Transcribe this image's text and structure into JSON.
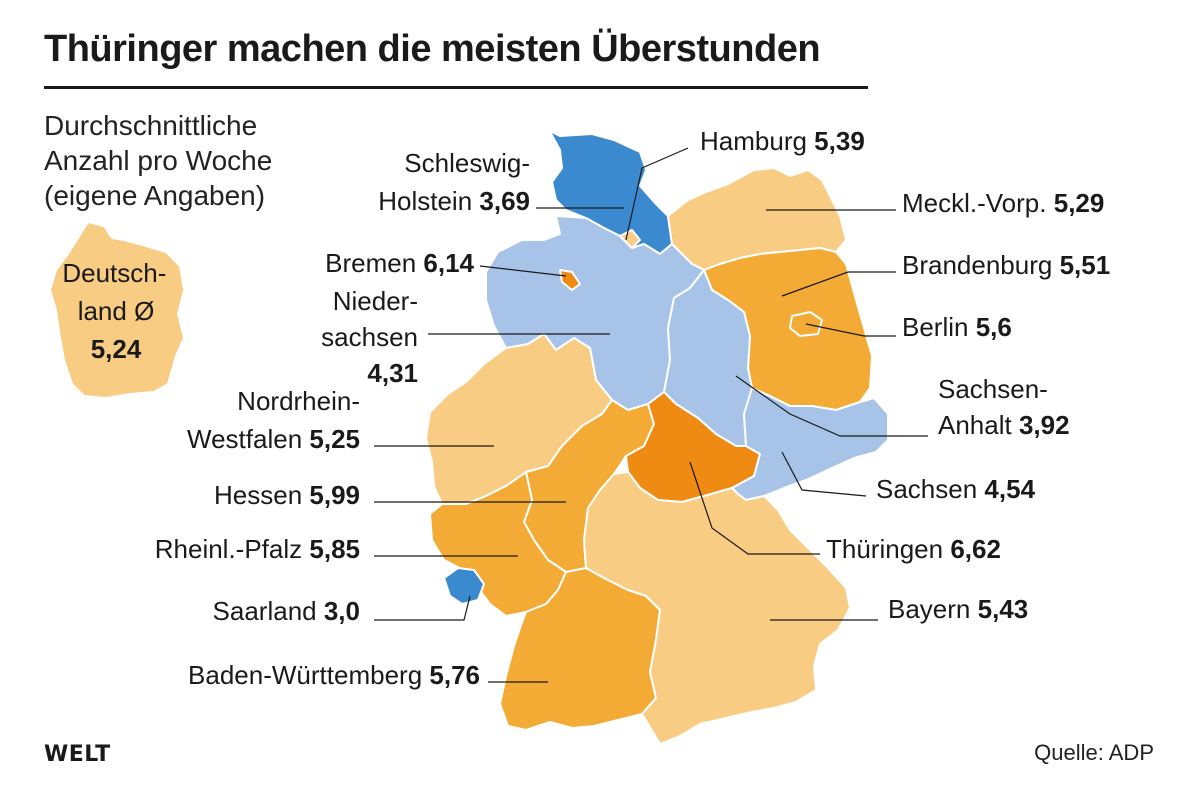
{
  "title": "Thüringer machen die meisten Überstunden",
  "subtitle_lines": [
    "Durchschnittliche",
    "Anzahl pro Woche",
    "(eigene Angaben)"
  ],
  "national": {
    "label_lines": [
      "Deutsch-",
      "land Ø"
    ],
    "value": "5,24",
    "color": "#f9cc84"
  },
  "legend_colors": {
    "pale_blue": "#a7c3e8",
    "mid_blue": "#3b8ad0",
    "pale_orange": "#f9cc84",
    "mid_orange": "#f3ab35",
    "dark_orange": "#ef8a12"
  },
  "states": [
    {
      "id": "schleswig-holstein",
      "label_lines": [
        "Schleswig-",
        "Holstein"
      ],
      "value": "3,69",
      "color": "#3b8ad0"
    },
    {
      "id": "hamburg",
      "label_lines": [
        "Hamburg"
      ],
      "value": "5,39",
      "color": "#f9cc84"
    },
    {
      "id": "mecklenburg-vorpommern",
      "label_lines": [
        "Meckl.-Vorp."
      ],
      "value": "5,29",
      "color": "#f9cc84"
    },
    {
      "id": "bremen",
      "label_lines": [
        "Bremen"
      ],
      "value": "6,14",
      "color": "#ef8a12"
    },
    {
      "id": "brandenburg",
      "label_lines": [
        "Brandenburg"
      ],
      "value": "5,51",
      "color": "#f3ab35"
    },
    {
      "id": "niedersachsen",
      "label_lines": [
        "Nieder-",
        "sachsen"
      ],
      "value": "4,31",
      "color": "#a7c3e8"
    },
    {
      "id": "berlin",
      "label_lines": [
        "Berlin"
      ],
      "value": "5,6",
      "color": "#f3ab35"
    },
    {
      "id": "sachsen-anhalt",
      "label_lines": [
        "Sachsen-",
        "Anhalt"
      ],
      "value": "3,92",
      "color": "#a7c3e8"
    },
    {
      "id": "nordrhein-westfalen",
      "label_lines": [
        "Nordrhein-",
        "Westfalen"
      ],
      "value": "5,25",
      "color": "#f9cc84"
    },
    {
      "id": "hessen",
      "label_lines": [
        "Hessen"
      ],
      "value": "5,99",
      "color": "#f3ab35"
    },
    {
      "id": "sachsen",
      "label_lines": [
        "Sachsen"
      ],
      "value": "4,54",
      "color": "#a7c3e8"
    },
    {
      "id": "rheinland-pfalz",
      "label_lines": [
        "Rheinl.-Pfalz"
      ],
      "value": "5,85",
      "color": "#f3ab35"
    },
    {
      "id": "thueringen",
      "label_lines": [
        "Thüringen"
      ],
      "value": "6,62",
      "color": "#ef8a12"
    },
    {
      "id": "saarland",
      "label_lines": [
        "Saarland"
      ],
      "value": "3,0",
      "color": "#3b8ad0"
    },
    {
      "id": "bayern",
      "label_lines": [
        "Bayern"
      ],
      "value": "5,43",
      "color": "#f9cc84"
    },
    {
      "id": "baden-wuerttemberg",
      "label_lines": [
        "Baden-Württemberg"
      ],
      "value": "5,76",
      "color": "#f3ab35"
    }
  ],
  "brand": "WELT",
  "source": "Quelle: ADP"
}
